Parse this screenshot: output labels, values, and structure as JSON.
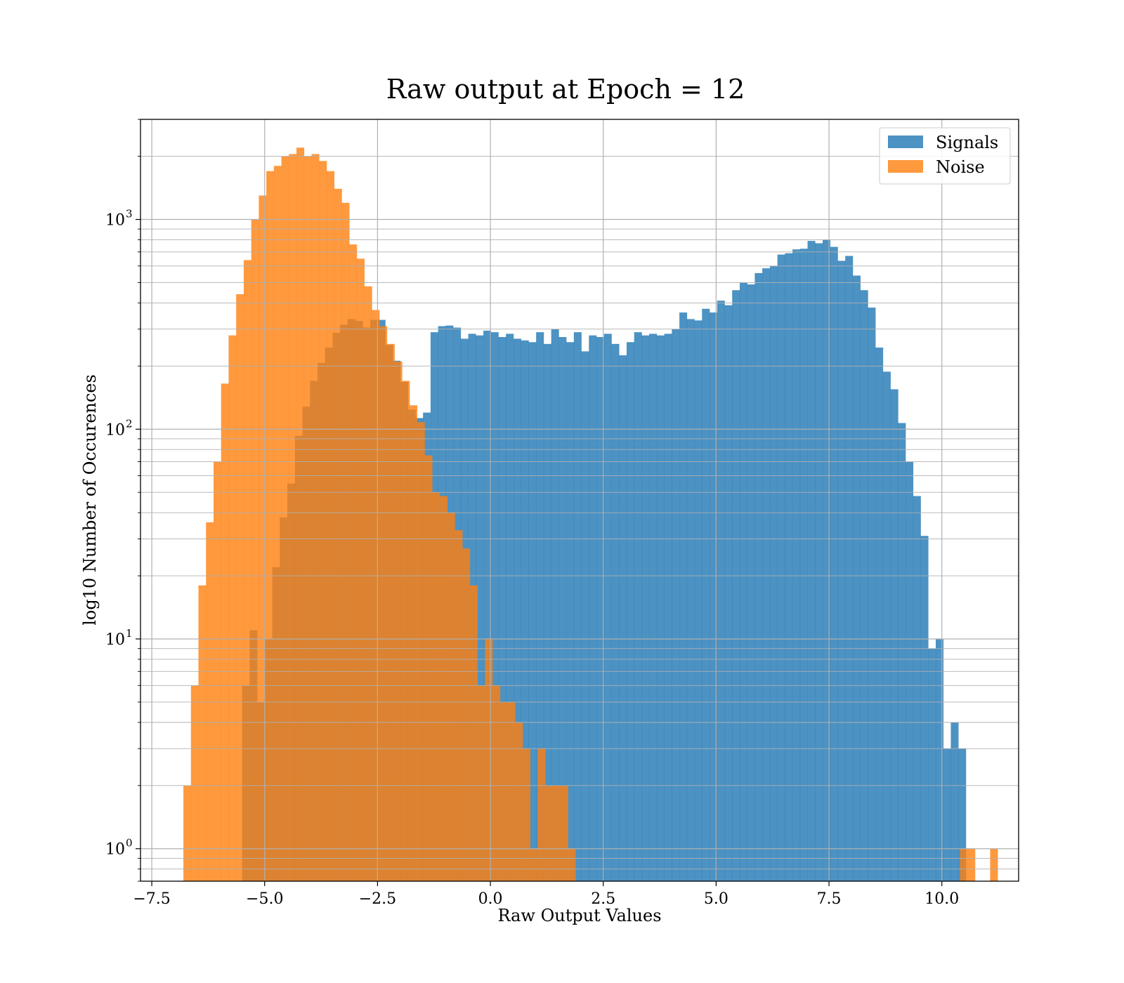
{
  "chart_data": {
    "type": "histogram",
    "title": "Raw output at Epoch = 12",
    "xlabel": "Raw Output Values",
    "ylabel": "log10 Number of Occurences",
    "yscale": "log",
    "xlim": [
      -7.75,
      11.7
    ],
    "ylim": [
      0.7,
      3000
    ],
    "grid": true,
    "legend_position": "top-right",
    "xticks": [
      -7.5,
      -5.0,
      -2.5,
      0.0,
      2.5,
      5.0,
      7.5,
      10.0
    ],
    "xtick_labels": [
      "−7.5",
      "−5.0",
      "−2.5",
      "0.0",
      "2.5",
      "5.0",
      "7.5",
      "10.0"
    ],
    "yticks": [
      {
        "value": 1,
        "base": "10",
        "exp": "0"
      },
      {
        "value": 10,
        "base": "10",
        "exp": "1"
      },
      {
        "value": 100,
        "base": "10",
        "exp": "2"
      },
      {
        "value": 1000,
        "base": "10",
        "exp": "3"
      }
    ],
    "series": [
      {
        "name": "Signals",
        "color": "#1f77b4",
        "opacity": 0.8,
        "bin_start": -5.5,
        "bin_width": 0.167,
        "counts": [
          6,
          11,
          5,
          10,
          22,
          38,
          55,
          93,
          128,
          170,
          207,
          245,
          288,
          315,
          335,
          328,
          305,
          332,
          332,
          252,
          212,
          168,
          124,
          113,
          120,
          290,
          310,
          312,
          305,
          270,
          285,
          280,
          295,
          290,
          275,
          285,
          270,
          265,
          260,
          290,
          255,
          300,
          275,
          260,
          290,
          235,
          280,
          275,
          285,
          255,
          225,
          260,
          290,
          280,
          285,
          280,
          285,
          300,
          360,
          335,
          330,
          375,
          360,
          410,
          390,
          460,
          500,
          490,
          555,
          585,
          600,
          680,
          690,
          720,
          725,
          790,
          770,
          800,
          740,
          635,
          670,
          540,
          460,
          380,
          245,
          188,
          155,
          107,
          70,
          48,
          31,
          9,
          10,
          3,
          4,
          3
        ]
      },
      {
        "name": "Noise",
        "color": "#ff7f0e",
        "opacity": 0.8,
        "bin_start": -6.8,
        "bin_width": 0.167,
        "counts": [
          2,
          6,
          18,
          36,
          70,
          165,
          280,
          440,
          640,
          1000,
          1300,
          1700,
          1800,
          2000,
          2050,
          2200,
          2000,
          2050,
          1900,
          1700,
          1400,
          1200,
          760,
          650,
          480,
          370,
          310,
          255,
          210,
          170,
          130,
          108,
          75,
          50,
          48,
          40,
          33,
          27,
          18,
          6,
          10,
          6,
          5,
          5,
          4,
          3,
          1,
          3,
          2,
          2,
          2,
          1,
          0,
          0,
          0,
          0,
          0,
          0,
          0,
          0,
          0,
          0,
          0,
          0,
          0,
          0,
          0,
          0,
          0,
          0,
          0,
          0,
          0,
          0,
          0,
          0,
          0,
          0,
          0,
          0,
          0,
          0,
          0,
          0,
          0,
          0,
          0,
          0,
          0,
          0,
          0,
          0,
          0,
          0,
          0,
          0,
          0,
          0,
          0,
          0,
          0,
          0,
          0,
          1,
          1,
          0,
          0,
          1
        ]
      }
    ]
  }
}
